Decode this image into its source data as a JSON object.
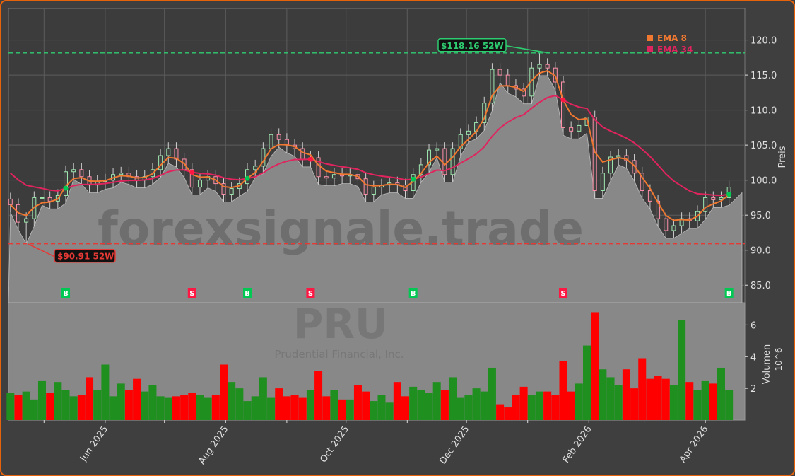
{
  "chart_data": {
    "type": "candlestick",
    "ticker": "PRU",
    "company": "Prudential Financial, Inc.",
    "watermark": "forexsignale.trade",
    "ylabel": "Preis",
    "volume_label": "Volumen",
    "volume_unit": "10^6",
    "volume_unit_base": "10",
    "volume_unit_exp": "6",
    "ylim": [
      82.5,
      124.5
    ],
    "y_ticks": [
      "85.0",
      "90.0",
      "95.0",
      "100.0",
      "105.0",
      "110.0",
      "115.0",
      "120.0"
    ],
    "volume_ylim": [
      0,
      7.4
    ],
    "volume_ticks": [
      "2",
      "4",
      "6"
    ],
    "x_ticks": [
      {
        "date": "2025-05-01",
        "label": ""
      },
      {
        "date": "2025-06-01",
        "label": "Jun 2025"
      },
      {
        "date": "2025-07-01",
        "label": ""
      },
      {
        "date": "2025-08-01",
        "label": "Aug 2025"
      },
      {
        "date": "2025-09-01",
        "label": ""
      },
      {
        "date": "2025-10-01",
        "label": "Oct 2025"
      },
      {
        "date": "2025-11-01",
        "label": ""
      },
      {
        "date": "2025-12-01",
        "label": "Dec 2025"
      },
      {
        "date": "2026-01-01",
        "label": ""
      },
      {
        "date": "2026-02-01",
        "label": "Feb 2026"
      },
      {
        "date": "2026-03-01",
        "label": ""
      },
      {
        "date": "2026-04-01",
        "label": "Apr 2026"
      }
    ],
    "xlim": [
      "2025-04-13",
      "2026-04-21"
    ],
    "grid": true,
    "legend": {
      "placement": "top-right",
      "items": [
        {
          "name": "EMA 8",
          "color": "#f07830"
        },
        {
          "name": "EMA 34",
          "color": "#e0245e"
        }
      ]
    },
    "ema_periods": [
      8,
      34
    ],
    "dates": [
      "2025-04-14",
      "2025-04-18",
      "2025-04-22",
      "2025-04-26",
      "2025-04-30",
      "2025-05-04",
      "2025-05-08",
      "2025-05-12",
      "2025-05-16",
      "2025-05-20",
      "2025-05-24",
      "2025-05-28",
      "2025-06-01",
      "2025-06-05",
      "2025-06-09",
      "2025-06-13",
      "2025-06-17",
      "2025-06-21",
      "2025-06-25",
      "2025-06-29",
      "2025-07-03",
      "2025-07-07",
      "2025-07-11",
      "2025-07-15",
      "2025-07-19",
      "2025-07-23",
      "2025-07-27",
      "2025-07-31",
      "2025-08-04",
      "2025-08-08",
      "2025-08-12",
      "2025-08-16",
      "2025-08-20",
      "2025-08-24",
      "2025-08-28",
      "2025-09-01",
      "2025-09-05",
      "2025-09-09",
      "2025-09-13",
      "2025-09-17",
      "2025-09-21",
      "2025-09-25",
      "2025-09-29",
      "2025-10-03",
      "2025-10-07",
      "2025-10-11",
      "2025-10-15",
      "2025-10-19",
      "2025-10-23",
      "2025-10-27",
      "2025-10-31",
      "2025-11-04",
      "2025-11-08",
      "2025-11-12",
      "2025-11-16",
      "2025-11-20",
      "2025-11-24",
      "2025-11-28",
      "2025-12-02",
      "2025-12-06",
      "2025-12-10",
      "2025-12-14",
      "2025-12-18",
      "2025-12-22",
      "2025-12-26",
      "2025-12-30",
      "2026-01-03",
      "2026-01-07",
      "2026-01-11",
      "2026-01-15",
      "2026-01-19",
      "2026-01-23",
      "2026-01-27",
      "2026-01-31",
      "2026-02-04",
      "2026-02-08",
      "2026-02-12",
      "2026-02-16",
      "2026-02-20",
      "2026-02-24",
      "2026-02-28",
      "2026-03-04",
      "2026-03-08",
      "2026-03-12",
      "2026-03-16",
      "2026-03-20",
      "2026-03-24",
      "2026-03-28",
      "2026-04-01",
      "2026-04-05",
      "2026-04-09",
      "2026-04-13"
    ],
    "close": [
      96.5,
      94,
      94.5,
      97.5,
      97.5,
      97,
      97.8,
      101.2,
      101.5,
      100.5,
      99.3,
      99.8,
      100,
      100.8,
      101,
      100.5,
      100,
      100.5,
      101.5,
      103.5,
      104.5,
      103,
      101.5,
      99,
      100,
      100.5,
      99.5,
      98,
      98.8,
      99.5,
      101.5,
      102,
      104.5,
      106.5,
      105.8,
      105,
      104.5,
      103,
      103.2,
      100.5,
      100.3,
      100.8,
      100.6,
      100.8,
      100.2,
      98,
      99,
      99.3,
      99.6,
      99.3,
      98.5,
      100.8,
      102.2,
      104.3,
      104.5,
      100.8,
      104.5,
      106.5,
      107,
      108.2,
      111,
      115.8,
      115,
      113.5,
      113,
      112,
      116,
      116.5,
      116,
      114,
      107.5,
      107,
      107.8,
      109,
      98.5,
      101,
      103.3,
      103.5,
      102.8,
      101,
      98.5,
      97,
      94.5,
      92.8,
      93.5,
      94.5,
      94.2,
      95.5,
      97.5,
      97.2,
      97.5,
      99
    ],
    "volume": [
      1.7,
      1.6,
      1.8,
      1.3,
      2.5,
      1.7,
      2.4,
      1.9,
      1.5,
      1.6,
      2.7,
      1.9,
      3.5,
      1.5,
      2.3,
      1.9,
      2.6,
      1.8,
      2.2,
      1.5,
      1.4,
      1.5,
      1.6,
      1.7,
      1.6,
      1.4,
      1.6,
      3.5,
      2.4,
      2.0,
      1.2,
      1.5,
      2.7,
      1.4,
      2.0,
      1.5,
      1.6,
      1.4,
      1.9,
      3.1,
      1.5,
      1.9,
      1.3,
      1.3,
      2.2,
      1.8,
      1.2,
      1.6,
      1.1,
      2.4,
      1.5,
      2.1,
      1.9,
      1.7,
      2.4,
      1.9,
      2.7,
      1.4,
      1.6,
      2.0,
      1.8,
      3.3,
      1.0,
      0.8,
      1.6,
      2.1,
      1.6,
      1.8,
      1.8,
      1.6,
      3.7,
      1.8,
      2.3,
      4.7,
      6.8,
      3.2,
      2.7,
      2.2,
      3.2,
      2.0,
      3.9,
      2.6,
      2.8,
      2.6,
      2.2,
      6.3,
      2.4,
      1.9,
      2.5,
      2.3,
      3.3,
      1.9
    ],
    "high_52w": {
      "value": 118.16,
      "label": "$118.16 52W",
      "date": "2026-01-11",
      "color": "#2ecc71"
    },
    "low_52w": {
      "value": 90.91,
      "label": "$90.91 52W",
      "date": "2025-04-22",
      "color": "#e53935"
    },
    "signals": [
      {
        "date": "2025-05-12",
        "type": "B"
      },
      {
        "date": "2025-07-15",
        "type": "S"
      },
      {
        "date": "2025-08-12",
        "type": "B"
      },
      {
        "date": "2025-09-13",
        "type": "S"
      },
      {
        "date": "2025-11-04",
        "type": "B"
      },
      {
        "date": "2026-01-19",
        "type": "S"
      },
      {
        "date": "2026-04-13",
        "type": "B"
      }
    ],
    "colors": {
      "up": "#2ecc71",
      "down": "#ff1744",
      "volume_up": "#1f8f1f",
      "volume_down": "#ff0000",
      "buy": "#00c853",
      "sell": "#ff1744",
      "area": "#888888"
    }
  }
}
